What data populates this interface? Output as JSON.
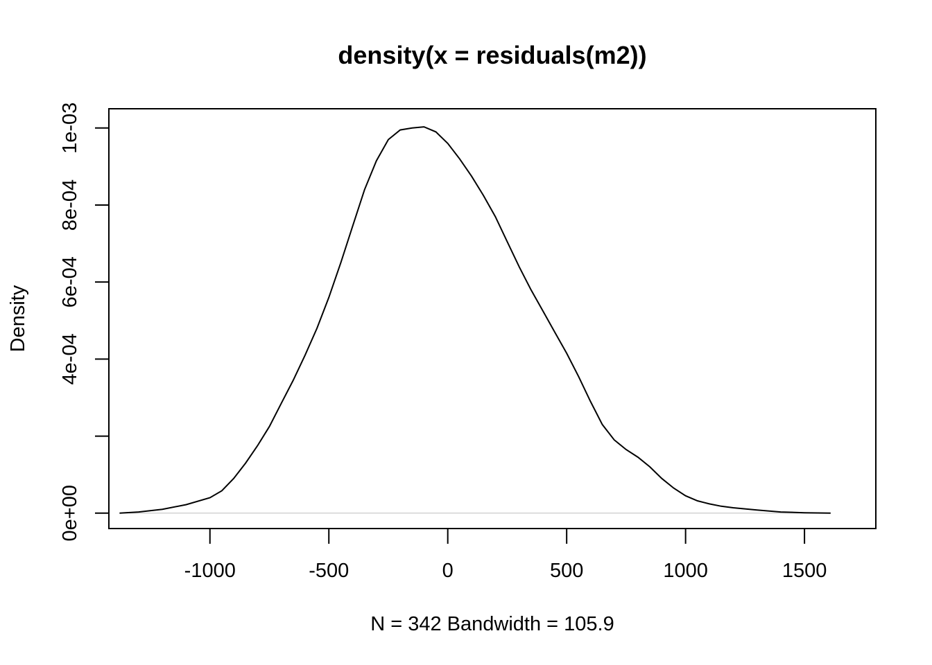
{
  "chart_data": {
    "type": "line",
    "title": "density(x = residuals(m2))",
    "xlabel": "N = 342   Bandwidth = 105.9",
    "ylabel": "Density",
    "xlim": [
      -1425,
      1800
    ],
    "ylim": [
      -4e-05,
      0.00105
    ],
    "x_ticks": [
      -1000,
      -500,
      0,
      500,
      1000,
      1500
    ],
    "x_tick_labels": [
      "-1000",
      "-500",
      "0",
      "500",
      "1000",
      "1500"
    ],
    "y_ticks": [
      0,
      0.0002,
      0.0004,
      0.0006,
      0.0008,
      0.001
    ],
    "y_tick_labels": [
      "0e+00",
      "",
      "4e-04",
      "6e-04",
      "8e-04",
      "1e-03"
    ],
    "zero_line": true,
    "grid": false,
    "series": [
      {
        "x": [
          -1380,
          -1300,
          -1200,
          -1100,
          -1000,
          -950,
          -900,
          -850,
          -800,
          -750,
          -700,
          -650,
          -600,
          -550,
          -500,
          -450,
          -400,
          -350,
          -300,
          -250,
          -200,
          -150,
          -100,
          -50,
          0,
          50,
          100,
          150,
          200,
          250,
          300,
          350,
          400,
          450,
          500,
          550,
          600,
          650,
          700,
          750,
          800,
          850,
          900,
          950,
          1000,
          1050,
          1100,
          1150,
          1200,
          1300,
          1400,
          1500,
          1610
        ],
        "y": [
          0.0,
          3e-06,
          1e-05,
          2.2e-05,
          4e-05,
          5.8e-05,
          9e-05,
          0.00013,
          0.000175,
          0.000225,
          0.000285,
          0.000345,
          0.00041,
          0.00048,
          0.00056,
          0.00065,
          0.000745,
          0.00084,
          0.000915,
          0.00097,
          0.000995,
          0.001,
          0.001003,
          0.00099,
          0.00096,
          0.00092,
          0.000875,
          0.000825,
          0.00077,
          0.000705,
          0.00064,
          0.00058,
          0.000525,
          0.00047,
          0.000415,
          0.000355,
          0.00029,
          0.00023,
          0.00019,
          0.000165,
          0.000145,
          0.00012,
          9e-05,
          6.5e-05,
          4.5e-05,
          3.2e-05,
          2.4e-05,
          1.8e-05,
          1.4e-05,
          8e-06,
          3e-06,
          1e-06,
          0.0
        ]
      }
    ]
  }
}
